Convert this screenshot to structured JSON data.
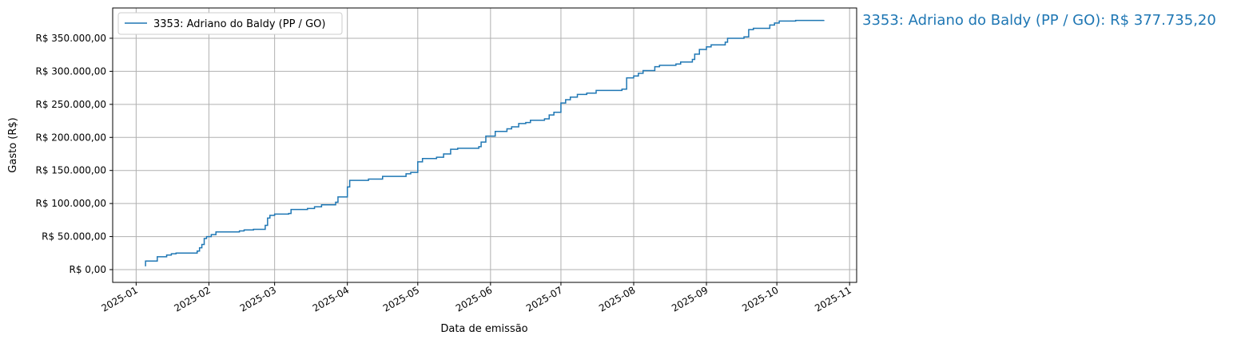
{
  "chart_data": {
    "type": "line",
    "drawstyle": "steps-post",
    "title": "",
    "xlabel": "Data de emissão",
    "ylabel": "Gasto (R$)",
    "xlim": [
      "2024-12-22",
      "2025-11-04"
    ],
    "ylim": [
      -19300,
      395800
    ],
    "grid": true,
    "legend_placement": "upper-left",
    "x_ticks": [
      "2025-01",
      "2025-02",
      "2025-03",
      "2025-04",
      "2025-05",
      "2025-06",
      "2025-07",
      "2025-08",
      "2025-09",
      "2025-10",
      "2025-11"
    ],
    "y_ticks": [
      0,
      50000,
      100000,
      150000,
      200000,
      250000,
      300000,
      350000
    ],
    "y_tick_labels": [
      "R$ 0,00",
      "R$ 50.000,00",
      "R$ 100.000,00",
      "R$ 150.000,00",
      "R$ 200.000,00",
      "R$ 250.000,00",
      "R$ 300.000,00",
      "R$ 350.000,00"
    ],
    "series": [
      {
        "name": "3353: Adriano do Baldy (PP / GO)",
        "color": "#1f77b4",
        "points": [
          [
            "2025-01-05",
            5000
          ],
          [
            "2025-01-05",
            13000
          ],
          [
            "2025-01-10",
            19500
          ],
          [
            "2025-01-14",
            22000
          ],
          [
            "2025-01-16",
            24000
          ],
          [
            "2025-01-18",
            25000
          ],
          [
            "2025-01-27",
            28000
          ],
          [
            "2025-01-28",
            33000
          ],
          [
            "2025-01-29",
            38000
          ],
          [
            "2025-01-30",
            47000
          ],
          [
            "2025-01-31",
            50000
          ],
          [
            "2025-02-02",
            53000
          ],
          [
            "2025-02-04",
            57000
          ],
          [
            "2025-02-14",
            58500
          ],
          [
            "2025-02-16",
            60000
          ],
          [
            "2025-02-20",
            61000
          ],
          [
            "2025-02-25",
            67000
          ],
          [
            "2025-02-26",
            78000
          ],
          [
            "2025-02-27",
            82000
          ],
          [
            "2025-03-01",
            84000
          ],
          [
            "2025-03-07",
            85000
          ],
          [
            "2025-03-08",
            91000
          ],
          [
            "2025-03-15",
            92500
          ],
          [
            "2025-03-18",
            95000
          ],
          [
            "2025-03-21",
            98000
          ],
          [
            "2025-03-27",
            102000
          ],
          [
            "2025-03-28",
            110000
          ],
          [
            "2025-04-01",
            125000
          ],
          [
            "2025-04-02",
            135000
          ],
          [
            "2025-04-10",
            137000
          ],
          [
            "2025-04-16",
            141000
          ],
          [
            "2025-04-26",
            145000
          ],
          [
            "2025-04-28",
            147000
          ],
          [
            "2025-05-01",
            163000
          ],
          [
            "2025-05-03",
            168000
          ],
          [
            "2025-05-09",
            170000
          ],
          [
            "2025-05-12",
            175000
          ],
          [
            "2025-05-15",
            182000
          ],
          [
            "2025-05-18",
            183500
          ],
          [
            "2025-05-27",
            186000
          ],
          [
            "2025-05-28",
            193000
          ],
          [
            "2025-05-30",
            202000
          ],
          [
            "2025-06-03",
            209000
          ],
          [
            "2025-06-08",
            213000
          ],
          [
            "2025-06-10",
            216000
          ],
          [
            "2025-06-13",
            221000
          ],
          [
            "2025-06-16",
            222500
          ],
          [
            "2025-06-18",
            226000
          ],
          [
            "2025-06-24",
            228000
          ],
          [
            "2025-06-26",
            234000
          ],
          [
            "2025-06-28",
            238000
          ],
          [
            "2025-07-01",
            252000
          ],
          [
            "2025-07-03",
            257000
          ],
          [
            "2025-07-05",
            261000
          ],
          [
            "2025-07-08",
            265000
          ],
          [
            "2025-07-12",
            267000
          ],
          [
            "2025-07-16",
            271000
          ],
          [
            "2025-07-27",
            273000
          ],
          [
            "2025-07-29",
            290000
          ],
          [
            "2025-08-01",
            293000
          ],
          [
            "2025-08-03",
            297000
          ],
          [
            "2025-08-05",
            301000
          ],
          [
            "2025-08-10",
            307000
          ],
          [
            "2025-08-12",
            309000
          ],
          [
            "2025-08-19",
            311000
          ],
          [
            "2025-08-21",
            314000
          ],
          [
            "2025-08-26",
            318000
          ],
          [
            "2025-08-27",
            326000
          ],
          [
            "2025-08-29",
            333000
          ],
          [
            "2025-09-01",
            337000
          ],
          [
            "2025-09-03",
            340000
          ],
          [
            "2025-09-09",
            344000
          ],
          [
            "2025-09-10",
            350000
          ],
          [
            "2025-09-17",
            352000
          ],
          [
            "2025-09-19",
            363000
          ],
          [
            "2025-09-21",
            365000
          ],
          [
            "2025-09-28",
            370000
          ],
          [
            "2025-09-30",
            373000
          ],
          [
            "2025-10-02",
            376000
          ],
          [
            "2025-10-09",
            377000
          ],
          [
            "2025-10-21",
            377735.2
          ]
        ]
      }
    ],
    "annotation": "3353: Adriano do Baldy (PP / GO): R$ 377.735,20"
  }
}
